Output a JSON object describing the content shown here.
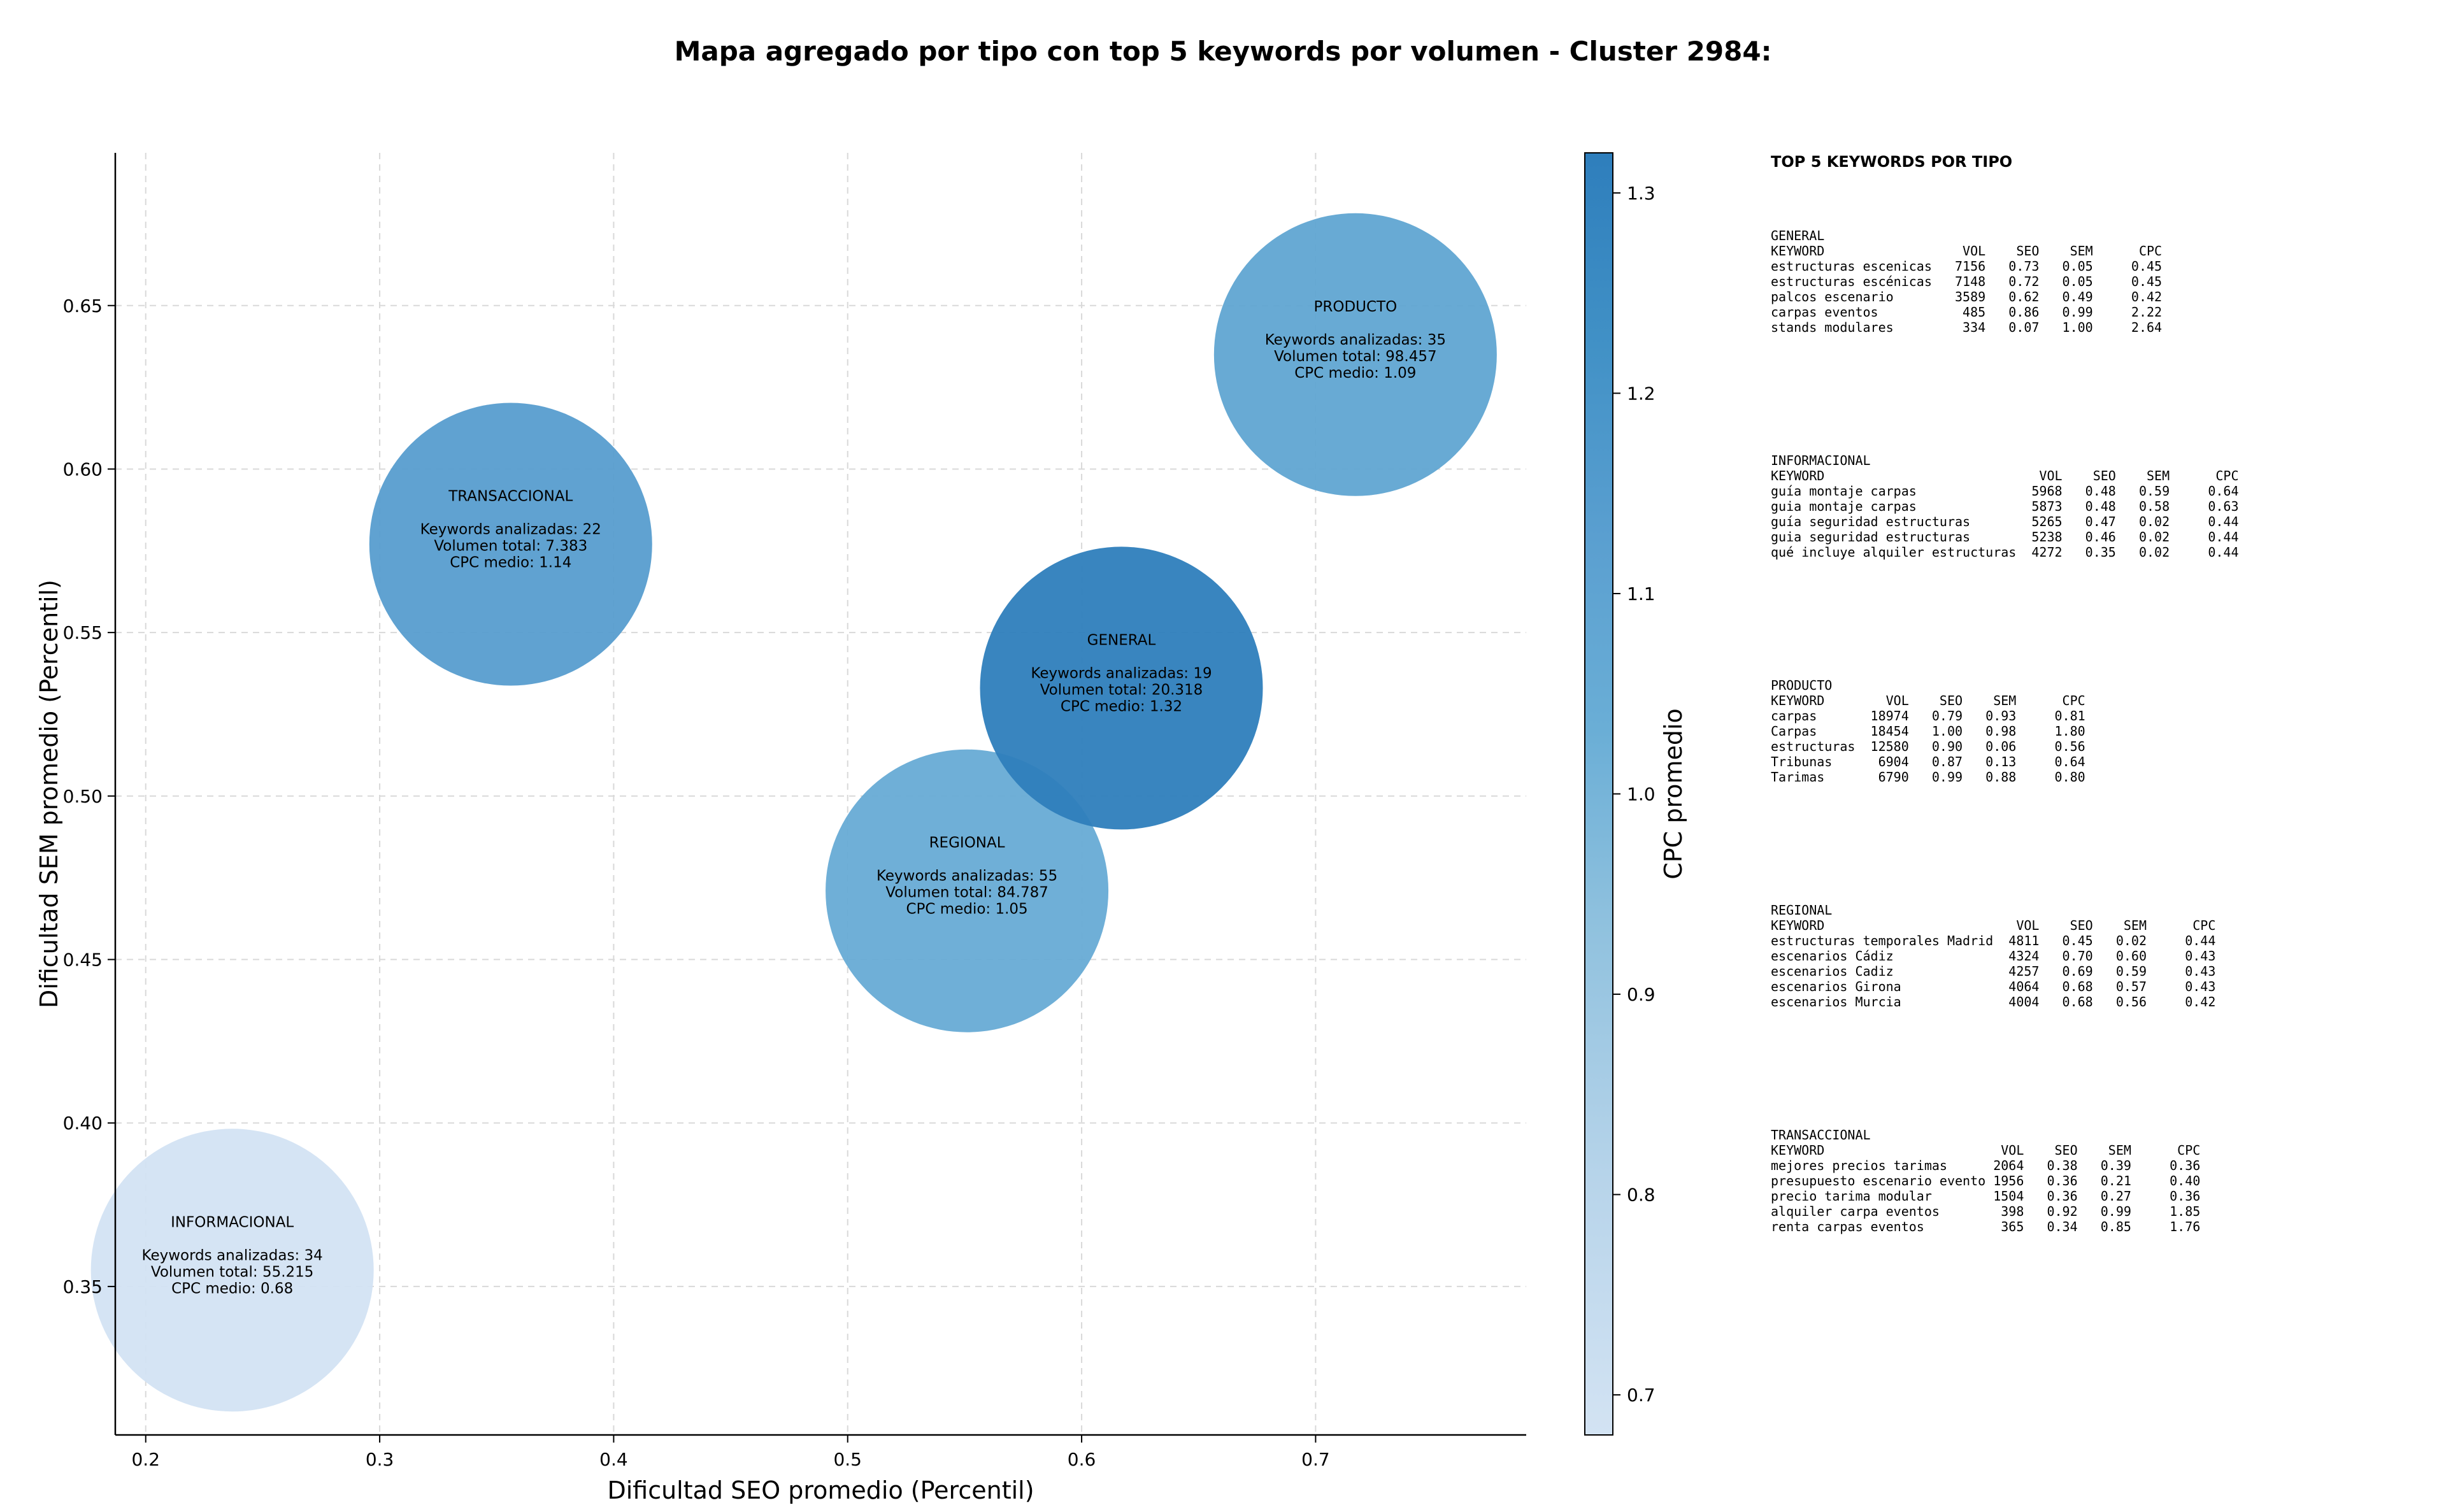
{
  "chart_data": {
    "type": "scatter",
    "title": "Mapa agregado por tipo con top 5 keywords por volumen - Cluster 2984:",
    "xlabel": "Dificultad SEO promedio (Percentil)",
    "ylabel": "Dificultad SEM promedio (Percentil)",
    "xlim": [
      0.187,
      0.79
    ],
    "ylim": [
      0.3046,
      0.6967
    ],
    "xticks": [
      "0.2",
      "0.3",
      "0.4",
      "0.5",
      "0.6",
      "0.7"
    ],
    "yticks": [
      "0.35",
      "0.40",
      "0.45",
      "0.50",
      "0.55",
      "0.60",
      "0.65"
    ],
    "grid": true,
    "colorbar": {
      "label": "CPC promedio",
      "range": [
        0.68,
        1.32
      ],
      "ticks": [
        "0.7",
        "0.8",
        "0.9",
        "1.0",
        "1.1",
        "1.2",
        "1.3"
      ],
      "colormap": "Blues"
    },
    "points": [
      {
        "name": "INFORMACIONAL",
        "x": 0.237,
        "y": 0.355,
        "cpc": 0.68,
        "keywords_label": "Keywords analizadas: 34",
        "volume_label": "Volumen total: 55.215",
        "cpc_label": "CPC medio: 0.68"
      },
      {
        "name": "TRANSACCIONAL",
        "x": 0.356,
        "y": 0.577,
        "cpc": 1.14,
        "keywords_label": "Keywords analizadas: 22",
        "volume_label": "Volumen total: 7.383",
        "cpc_label": "CPC medio: 1.14"
      },
      {
        "name": "REGIONAL",
        "x": 0.551,
        "y": 0.471,
        "cpc": 1.05,
        "keywords_label": "Keywords analizadas: 55",
        "volume_label": "Volumen total: 84.787",
        "cpc_label": "CPC medio: 1.05"
      },
      {
        "name": "GENERAL",
        "x": 0.617,
        "y": 0.533,
        "cpc": 1.32,
        "keywords_label": "Keywords analizadas: 19",
        "volume_label": "Volumen total: 20.318",
        "cpc_label": "CPC medio: 1.32"
      },
      {
        "name": "PRODUCTO",
        "x": 0.717,
        "y": 0.635,
        "cpc": 1.09,
        "keywords_label": "Keywords analizadas: 35",
        "volume_label": "Volumen total: 98.457",
        "cpc_label": "CPC medio: 1.09"
      }
    ],
    "side_panel": {
      "heading": "TOP 5 KEYWORDS POR TIPO",
      "tables": [
        {
          "group": "GENERAL",
          "lines": [
            "KEYWORD                  VOL    SEO    SEM      CPC",
            "estructuras escenicas   7156   0.73   0.05     0.45",
            "estructuras escénicas   7148   0.72   0.05     0.45",
            "palcos escenario        3589   0.62   0.49     0.42",
            "carpas eventos           485   0.86   0.99     2.22",
            "stands modulares         334   0.07   1.00     2.64"
          ]
        },
        {
          "group": "INFORMACIONAL",
          "lines": [
            "KEYWORD                            VOL    SEO    SEM      CPC",
            "guía montaje carpas               5968   0.48   0.59     0.64",
            "guia montaje carpas               5873   0.48   0.58     0.63",
            "guía seguridad estructuras        5265   0.47   0.02     0.44",
            "guia seguridad estructuras        5238   0.46   0.02     0.44",
            "qué incluye alquiler estructuras  4272   0.35   0.02     0.44"
          ]
        },
        {
          "group": "PRODUCTO",
          "lines": [
            "KEYWORD        VOL    SEO    SEM      CPC",
            "carpas       18974   0.79   0.93     0.81",
            "Carpas       18454   1.00   0.98     1.80",
            "estructuras  12580   0.90   0.06     0.56",
            "Tribunas      6904   0.87   0.13     0.64",
            "Tarimas       6790   0.99   0.88     0.80"
          ]
        },
        {
          "group": "REGIONAL",
          "lines": [
            "KEYWORD                         VOL    SEO    SEM      CPC",
            "estructuras temporales Madrid  4811   0.45   0.02     0.44",
            "escenarios Cádiz               4324   0.70   0.60     0.43",
            "escenarios Cadiz               4257   0.69   0.59     0.43",
            "escenarios Girona              4064   0.68   0.57     0.43",
            "escenarios Murcia              4004   0.68   0.56     0.42"
          ]
        },
        {
          "group": "TRANSACCIONAL",
          "lines": [
            "KEYWORD                       VOL    SEO    SEM      CPC",
            "mejores precios tarimas      2064   0.38   0.39     0.36",
            "presupuesto escenario evento 1956   0.36   0.21     0.40",
            "precio tarima modular        1504   0.36   0.27     0.36",
            "alquiler carpa eventos        398   0.92   0.99     1.85",
            "renta carpas eventos          365   0.34   0.85     1.76"
          ]
        }
      ]
    }
  }
}
